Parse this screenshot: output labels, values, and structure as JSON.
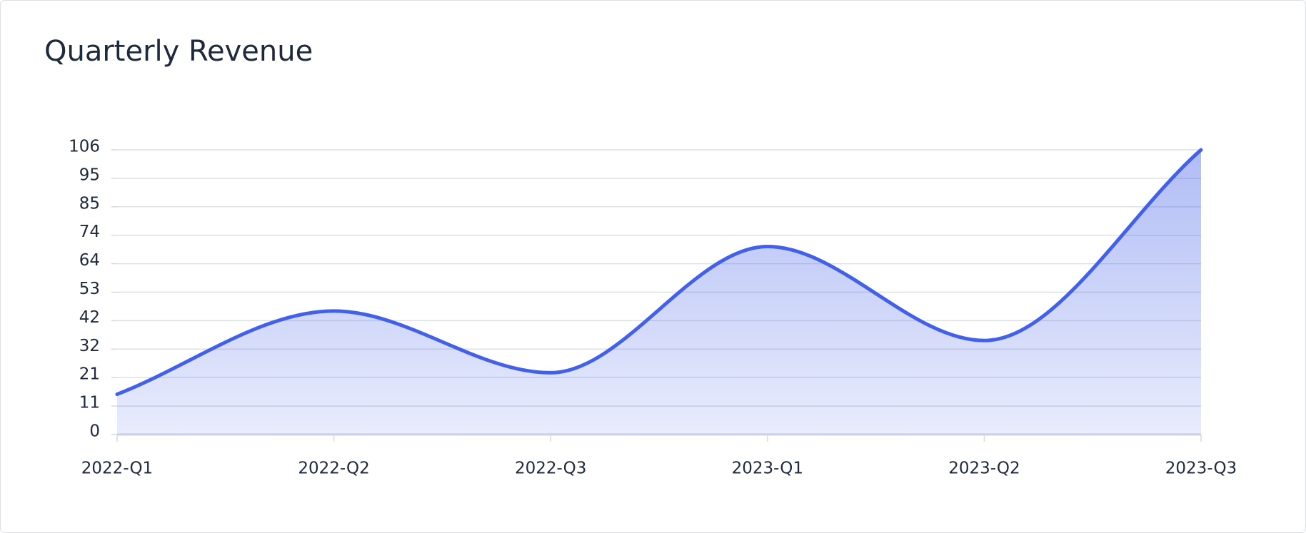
{
  "chart_data": {
    "type": "area",
    "title": "Quarterly Revenue",
    "categories": [
      "2022-Q1",
      "2022-Q2",
      "2022-Q3",
      "2023-Q1",
      "2023-Q2",
      "2023-Q3"
    ],
    "values": [
      15,
      46,
      23,
      70,
      35,
      106
    ],
    "color": "#4361e8",
    "ylim": [
      0,
      106
    ],
    "yticks": [
      0,
      {
        "value": 10.6,
        "label": "11"
      },
      {
        "value": 21.2,
        "label": "21"
      },
      {
        "value": 31.8,
        "label": "32"
      },
      {
        "value": 42.4,
        "label": "42"
      },
      53,
      {
        "value": 63.6,
        "label": "64"
      },
      {
        "value": 74.2,
        "label": "74"
      },
      {
        "value": 84.8,
        "label": "85"
      },
      {
        "value": 95.4,
        "label": "95"
      },
      106
    ],
    "grid": true
  }
}
